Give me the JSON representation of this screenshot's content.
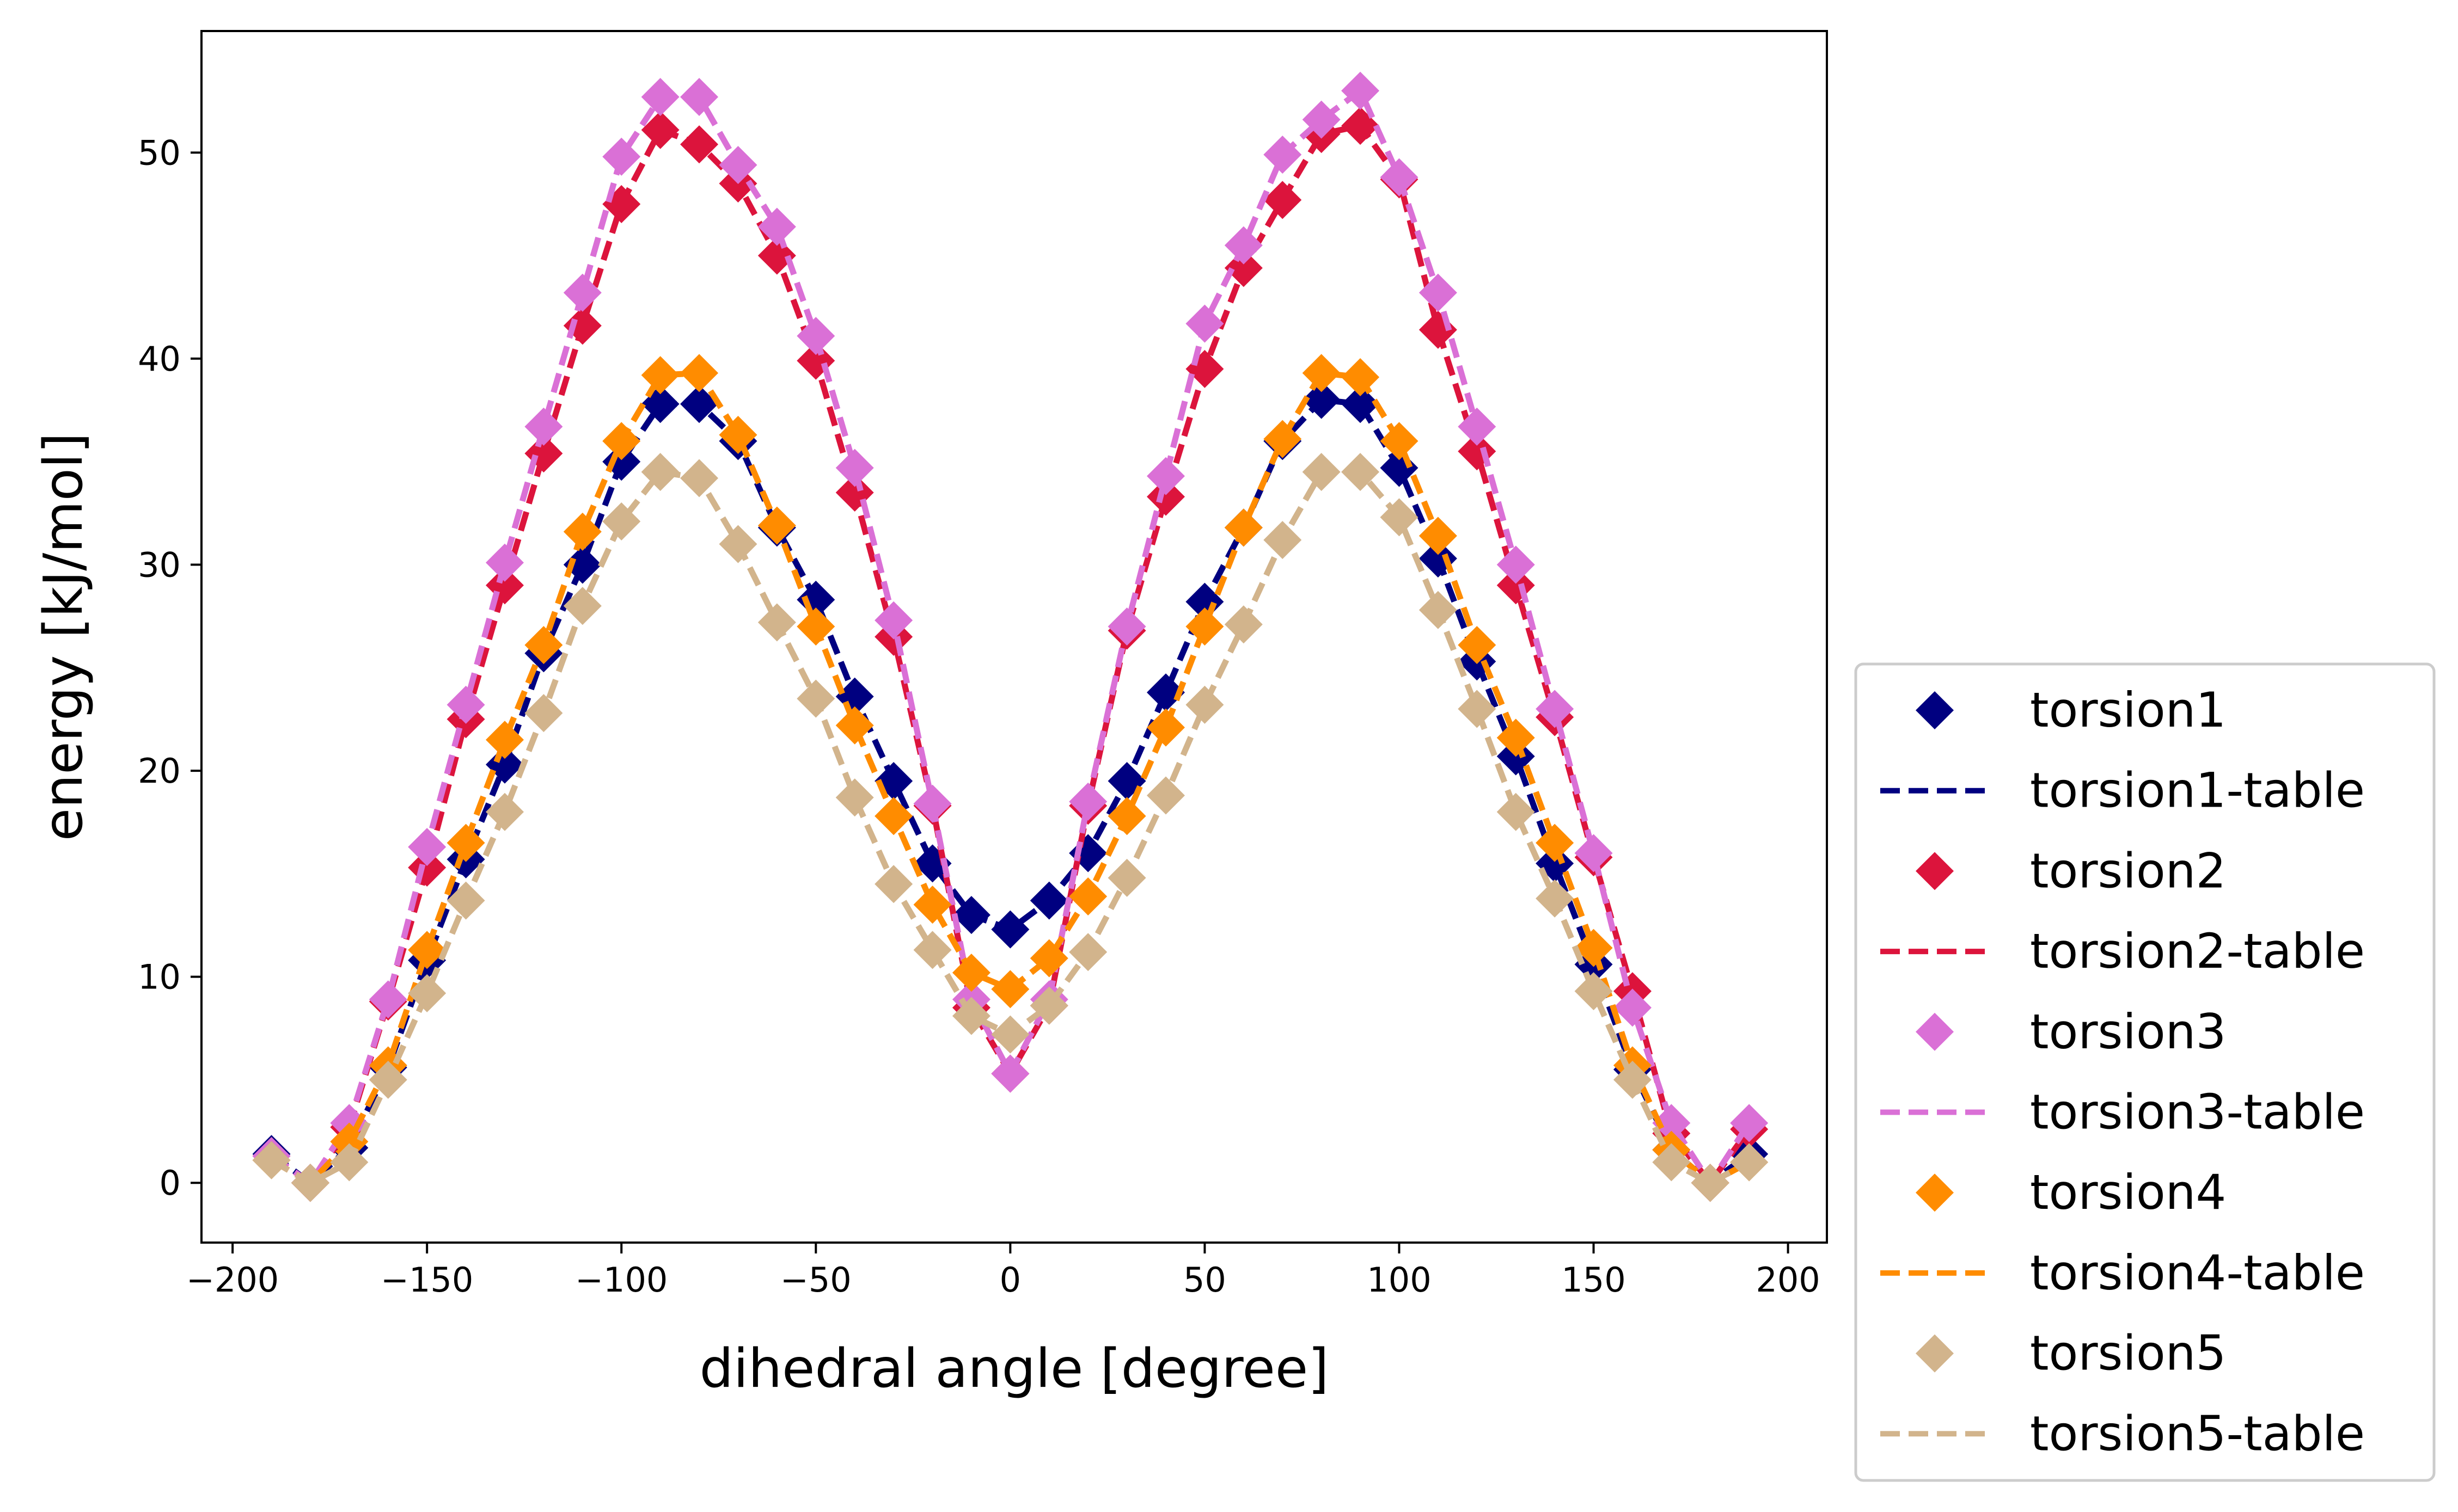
{
  "chart_data": {
    "type": "line",
    "xlabel": "dihedral angle [degree]",
    "ylabel": "energy [kJ/mol]",
    "xlim": [
      -208,
      210
    ],
    "ylim": [
      -2.9,
      55.9
    ],
    "x_ticks": [
      -200,
      -150,
      -100,
      -50,
      0,
      50,
      100,
      150,
      200
    ],
    "x_tick_labels": [
      "−200",
      "−150",
      "−100",
      "−50",
      "0",
      "50",
      "100",
      "150",
      "200"
    ],
    "y_ticks": [
      0,
      10,
      20,
      30,
      40,
      50
    ],
    "y_tick_labels": [
      "0",
      "10",
      "20",
      "30",
      "40",
      "50"
    ],
    "grid": false,
    "legend_position": "outside lower right",
    "x": [
      -190,
      -180,
      -170,
      -160,
      -150,
      -140,
      -130,
      -120,
      -110,
      -100,
      -90,
      -80,
      -70,
      -60,
      -50,
      -40,
      -30,
      -20,
      -10,
      0,
      10,
      20,
      30,
      40,
      50,
      60,
      70,
      80,
      90,
      100,
      110,
      120,
      130,
      140,
      150,
      160,
      170,
      180,
      190
    ],
    "series": [
      {
        "name": "torsion1",
        "table_name": "torsion1-table",
        "color": "#000080",
        "values": [
          1.4,
          0.0,
          1.7,
          5.6,
          10.8,
          15.7,
          20.3,
          25.7,
          30.0,
          35.0,
          37.8,
          37.8,
          36.0,
          31.8,
          28.3,
          23.6,
          19.5,
          15.5,
          13.0,
          12.3,
          13.7,
          16.0,
          19.5,
          23.8,
          28.2,
          31.8,
          36.0,
          38.0,
          37.8,
          34.7,
          30.3,
          25.3,
          20.7,
          15.5,
          10.6,
          5.5,
          1.6,
          0.0,
          1.4
        ]
      },
      {
        "name": "torsion2",
        "table_name": "torsion2-table",
        "color": "#DC143C",
        "values": [
          1.3,
          0.0,
          2.7,
          8.8,
          15.3,
          22.5,
          29.0,
          35.4,
          41.6,
          47.5,
          51.1,
          50.4,
          48.5,
          45.0,
          39.9,
          33.5,
          26.5,
          18.3,
          8.5,
          5.3,
          8.6,
          18.3,
          26.8,
          33.3,
          39.5,
          44.4,
          47.7,
          50.9,
          51.3,
          48.7,
          41.4,
          35.5,
          29.0,
          22.6,
          15.8,
          9.3,
          2.4,
          0.0,
          2.6
        ]
      },
      {
        "name": "torsion3",
        "table_name": "torsion3-table",
        "color": "#DA70D6",
        "values": [
          1.3,
          0.0,
          2.9,
          8.9,
          16.3,
          23.2,
          30.1,
          36.7,
          43.2,
          49.8,
          52.7,
          52.7,
          49.4,
          46.4,
          41.1,
          34.7,
          27.3,
          18.4,
          8.9,
          5.3,
          8.9,
          18.5,
          27.0,
          34.3,
          41.7,
          45.5,
          49.9,
          51.6,
          53.0,
          48.8,
          43.2,
          36.7,
          30.0,
          23.0,
          16.0,
          8.5,
          2.9,
          0.0,
          2.9
        ]
      },
      {
        "name": "torsion4",
        "table_name": "torsion4-table",
        "color": "#FF8C00",
        "values": [
          1.1,
          0.0,
          2.0,
          5.7,
          11.3,
          16.5,
          21.5,
          26.1,
          31.6,
          36.0,
          39.2,
          39.3,
          36.3,
          31.9,
          27.0,
          22.2,
          17.8,
          13.5,
          10.2,
          9.4,
          10.9,
          13.9,
          17.8,
          22.1,
          27.0,
          31.8,
          36.1,
          39.3,
          39.1,
          36.0,
          31.4,
          26.1,
          21.6,
          16.5,
          11.4,
          5.7,
          1.6,
          0.0,
          1.0
        ]
      },
      {
        "name": "torsion5",
        "table_name": "torsion5-table",
        "color": "#D2B48C",
        "values": [
          1.1,
          0.0,
          1.0,
          5.0,
          9.2,
          13.7,
          18.0,
          22.8,
          28.0,
          32.1,
          34.5,
          34.2,
          31.0,
          27.2,
          23.5,
          18.7,
          14.5,
          11.3,
          8.1,
          7.2,
          8.6,
          11.2,
          14.8,
          18.8,
          23.2,
          27.1,
          31.2,
          34.5,
          34.5,
          32.3,
          27.8,
          23.0,
          18.0,
          13.8,
          9.3,
          5.0,
          1.0,
          0.0,
          1.0
        ]
      }
    ]
  }
}
